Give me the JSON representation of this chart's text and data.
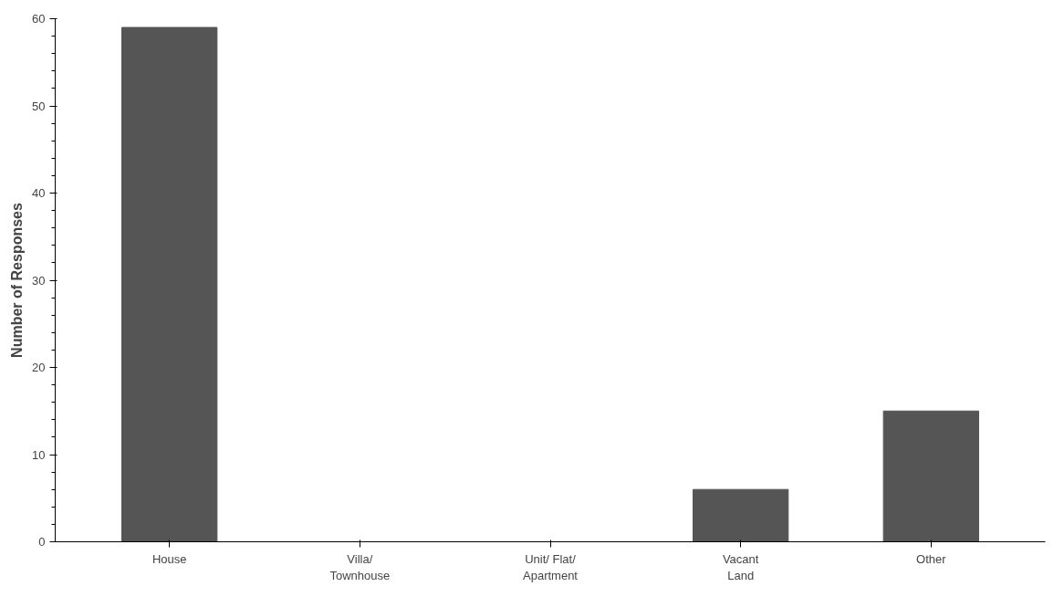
{
  "chart_data": {
    "type": "bar",
    "ylabel": "Number of Responses",
    "categories": [
      "House",
      "Villa/\nTownhouse",
      "Unit/ Flat/\nApartment",
      "Vacant\nLand",
      "Other"
    ],
    "values": [
      59,
      0,
      0,
      6,
      15
    ],
    "color": "#555555",
    "ylim": [
      0,
      60
    ],
    "yticks": [
      0,
      10,
      20,
      30,
      40,
      50,
      60
    ],
    "grid": false
  }
}
